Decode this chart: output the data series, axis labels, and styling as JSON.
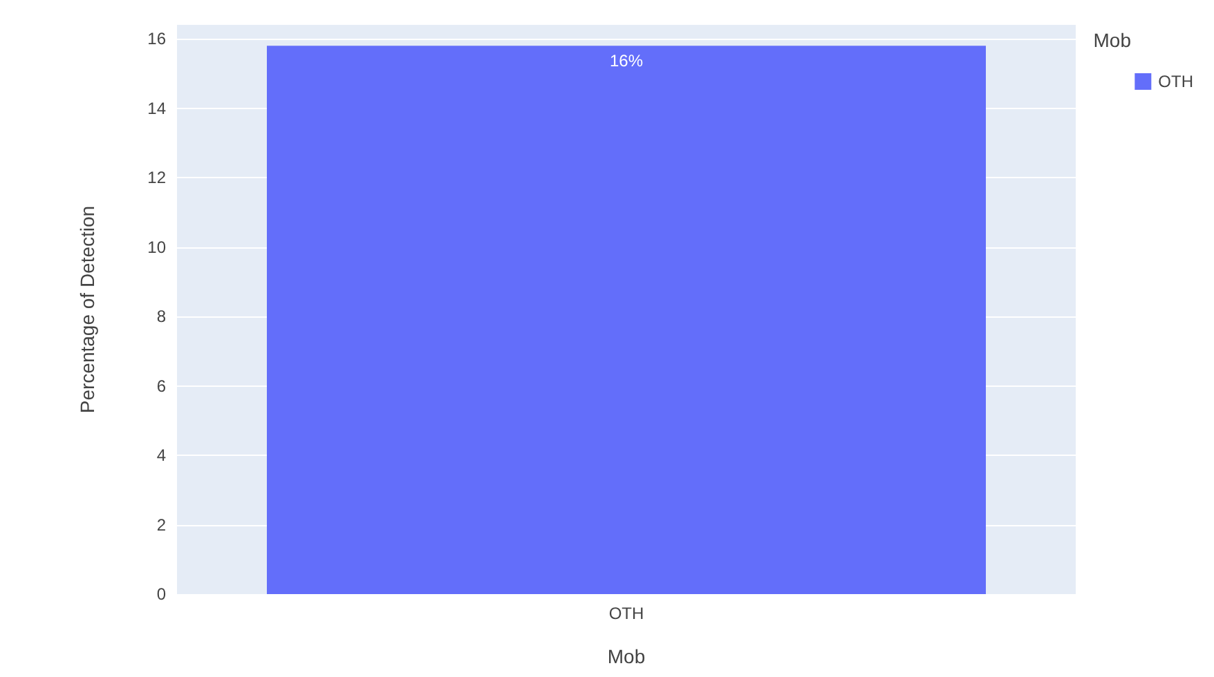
{
  "chart_data": {
    "type": "bar",
    "xlabel": "Mob",
    "ylabel": "Percentage of Detection",
    "legend_title": "Mob",
    "categories": [
      "OTH"
    ],
    "series": [
      {
        "name": "OTH",
        "color": "#636efa",
        "values": [
          15.8
        ],
        "value_labels": [
          "16%"
        ]
      }
    ],
    "ylim": [
      0,
      16.4
    ],
    "yticks": [
      0,
      2,
      4,
      6,
      8,
      10,
      12,
      14,
      16
    ],
    "grid": "y",
    "legend": "top right"
  }
}
